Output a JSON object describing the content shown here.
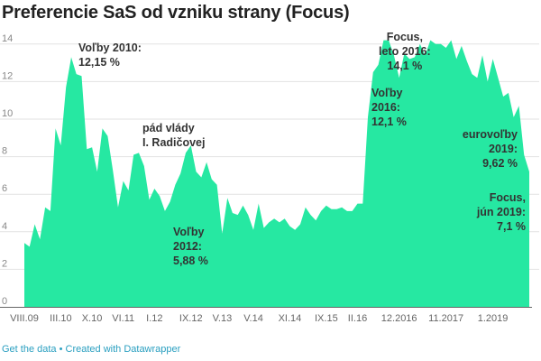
{
  "title": "Preferencie SaS od vzniku strany (Focus)",
  "footer": {
    "get_data": "Get the data",
    "separator": " • ",
    "created_with": "Created with Datawrapper"
  },
  "chart_data": {
    "type": "area",
    "title": "Preferencie SaS od vzniku strany (Focus)",
    "xlabel": "",
    "ylabel": "",
    "ylim": [
      0,
      14
    ],
    "y_ticks": [
      "0",
      "2",
      "4",
      "6",
      "8",
      "10",
      "12",
      "14"
    ],
    "grid": true,
    "color": "#26e8a2",
    "x_ticks": [
      {
        "label": "VIII.09",
        "index": 0
      },
      {
        "label": "III.10",
        "index": 7
      },
      {
        "label": "X.10",
        "index": 13
      },
      {
        "label": "VI.11",
        "index": 19
      },
      {
        "label": "I.12",
        "index": 25
      },
      {
        "label": "IX.12",
        "index": 32
      },
      {
        "label": "V.13",
        "index": 38
      },
      {
        "label": "V.14",
        "index": 44
      },
      {
        "label": "XI.14",
        "index": 51
      },
      {
        "label": "IX.15",
        "index": 58
      },
      {
        "label": "II.16",
        "index": 64
      },
      {
        "label": "12.2016",
        "index": 72
      },
      {
        "label": "11.2017",
        "index": 81
      },
      {
        "label": "1.2019",
        "index": 90
      }
    ],
    "values": [
      3.4,
      3.2,
      4.4,
      3.6,
      5.3,
      5.1,
      9.5,
      8.6,
      11.7,
      13.3,
      12.4,
      12.3,
      8.4,
      8.5,
      7.2,
      9.5,
      9.1,
      7.3,
      5.3,
      6.7,
      6.2,
      8.1,
      8.2,
      7.5,
      5.7,
      6.3,
      5.9,
      5.1,
      5.6,
      6.5,
      7.1,
      8.2,
      8.6,
      7.2,
      6.9,
      7.7,
      6.8,
      6.5,
      3.9,
      5.8,
      5.0,
      4.9,
      5.4,
      4.9,
      4.1,
      5.5,
      4.2,
      4.5,
      4.7,
      4.5,
      4.7,
      4.3,
      4.1,
      4.4,
      5.3,
      4.9,
      4.6,
      5.1,
      5.4,
      5.2,
      5.2,
      5.3,
      5.1,
      5.1,
      5.5,
      5.5,
      10.1,
      12.5,
      12.9,
      14.2,
      14.2,
      13.4,
      12.2,
      13.5,
      13.2,
      13.3,
      14.0,
      13.4,
      14.2,
      14.0,
      14.0,
      13.8,
      14.2,
      13.2,
      13.9,
      13.1,
      12.4,
      12.2,
      13.4,
      12.0,
      13.2,
      12.2,
      11.2,
      11.4,
      10.1,
      10.7,
      8.1,
      7.2
    ],
    "annotations": [
      {
        "text": "Voľby 2010:\n12,15 %"
      },
      {
        "text": "pád vlády\nI. Radičovej"
      },
      {
        "text": "Voľby\n2012:\n5,88 %"
      },
      {
        "text": "Focus,\nleto 2016:\n14,1 %"
      },
      {
        "text": "Voľby\n2016:\n12,1 %"
      },
      {
        "text": "eurovoľby\n2019:\n9,62 %"
      },
      {
        "text": "Focus,\njún 2019:\n7,1 %"
      }
    ]
  }
}
